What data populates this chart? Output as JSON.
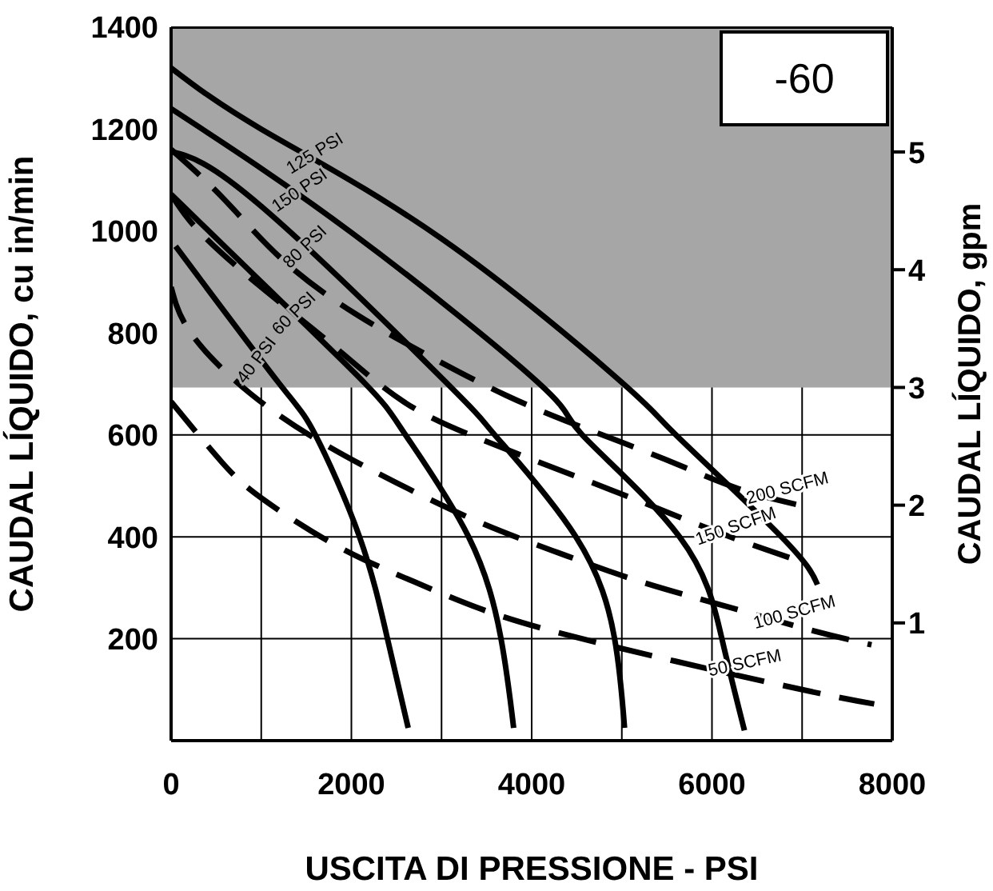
{
  "chart_data": {
    "type": "line",
    "xlabel": "USCITA DI PRESSIONE - PSI",
    "ylabel": "CAUDAL LÍQUIDO, cu in/min",
    "y2label": "CAUDAL LÍQUIDO, gpm",
    "xlim": [
      0,
      8000
    ],
    "xticks": [
      0,
      {
        "value": 1000,
        "label": null
      },
      2000,
      {
        "value": 3000,
        "label": null
      },
      4000,
      {
        "value": 5000,
        "label": null
      },
      6000,
      {
        "value": 7000,
        "label": null
      },
      8000
    ],
    "ylim": [
      0,
      1400
    ],
    "yticks": [
      200,
      400,
      600,
      800,
      1000,
      1200,
      1400
    ],
    "y2lim": [
      0,
      6.06
    ],
    "y2ticks": [
      1,
      2,
      3,
      4,
      5
    ],
    "grid": true,
    "marker": "none",
    "bands": [
      {
        "axis": "y",
        "from": 693,
        "to": 1400,
        "color": "#a6a6a6"
      }
    ],
    "series": [
      {
        "name": "125 PSI",
        "color": "#000000",
        "line_style": "solid",
        "x": [
          0,
          1000,
          3000,
          5000,
          5600,
          6770,
          7170
        ],
        "values": [
          1320,
          1200,
          985,
          703,
          600,
          400,
          306
        ]
      },
      {
        "name": "150 PSI",
        "color": "#000000",
        "line_style": "solid",
        "x": [
          0,
          2000,
          4070,
          4560,
          5640,
          6110,
          6360
        ],
        "values": [
          1240,
          997,
          703,
          600,
          400,
          200,
          20
        ]
      },
      {
        "name": "80 PSI",
        "color": "#000000",
        "line_style": "solid",
        "x": [
          0,
          1010,
          3050,
          3590,
          4490,
          4920,
          5030
        ],
        "values": [
          1156,
          1047,
          703,
          600,
          400,
          200,
          25
        ]
      },
      {
        "name": "60 PSI",
        "color": "#000000",
        "line_style": "solid",
        "x": [
          0,
          1000,
          2140,
          2600,
          3300,
          3660,
          3800
        ],
        "values": [
          1072,
          900,
          703,
          600,
          400,
          200,
          25
        ]
      },
      {
        "name": "40 PSI",
        "color": "#000000",
        "line_style": "solid",
        "x": [
          50,
          1190,
          1600,
          2090,
          2400,
          2630
        ],
        "values": [
          970,
          703,
          600,
          400,
          200,
          25
        ]
      },
      {
        "name": "200 SCFM",
        "color": "#000000",
        "line_style": "dashed",
        "x": [
          0,
          590,
          1240,
          2040,
          2850,
          3710,
          4560,
          5480,
          6300,
          7050
        ],
        "values": [
          1160,
          1062,
          943,
          838,
          756,
          678,
          615,
          552,
          494,
          459
        ]
      },
      {
        "name": "150 SCFM",
        "color": "#000000",
        "line_style": "dashed",
        "x": [
          0,
          340,
          1060,
          1820,
          2580,
          3400,
          4310,
          5210,
          6110,
          7010
        ],
        "values": [
          1072,
          994,
          881,
          772,
          665,
          594,
          531,
          469,
          406,
          350
        ]
      },
      {
        "name": "100 SCFM",
        "color": "#000000",
        "line_style": "dashed",
        "x": [
          0,
          230,
          880,
          1680,
          2500,
          3390,
          4290,
          5190,
          6110,
          7050,
          7770
        ],
        "values": [
          890,
          797,
          681,
          584,
          506,
          431,
          369,
          313,
          266,
          219,
          188
        ]
      },
      {
        "name": "50 SCFM",
        "color": "#000000",
        "line_style": "dashed",
        "x": [
          0,
          560,
          1010,
          1820,
          2680,
          3570,
          4490,
          5420,
          6360,
          7320,
          7800
        ],
        "values": [
          665,
          547,
          475,
          384,
          313,
          250,
          203,
          163,
          125,
          88,
          72
        ]
      }
    ],
    "annotations": [
      "-60"
    ]
  }
}
